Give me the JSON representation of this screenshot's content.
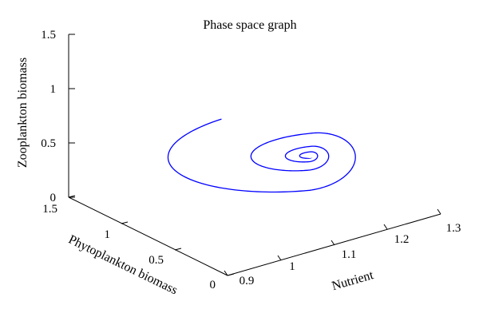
{
  "chart_data": {
    "type": "line",
    "title": "Phase space graph",
    "xlabel": "Nutrient",
    "ylabel": "Phytoplankton biomass",
    "zlabel": "Zooplankton biomass",
    "x_ticks": [
      "0.9",
      "1",
      "1.1",
      "1.2",
      "1.3"
    ],
    "y_ticks": [
      "0",
      "0.5",
      "1",
      "1.5"
    ],
    "z_ticks": [
      "0",
      "0.5",
      "1",
      "1.5"
    ],
    "xlim": [
      0.9,
      1.3
    ],
    "ylim": [
      0,
      1.5
    ],
    "zlim": [
      0,
      1.5
    ],
    "line_color": "#0000ff",
    "grid": false,
    "series": [
      {
        "trajectory": "damped spiral converging to equilibrium",
        "start": {
          "nutrient": 1.0,
          "phytoplankton": 1.2,
          "zooplankton": 0.97
        },
        "equilibrium": {
          "nutrient": 1.17,
          "phytoplankton": 0.7,
          "zooplankton": 0.5
        },
        "approx_turns": 18
      }
    ]
  }
}
